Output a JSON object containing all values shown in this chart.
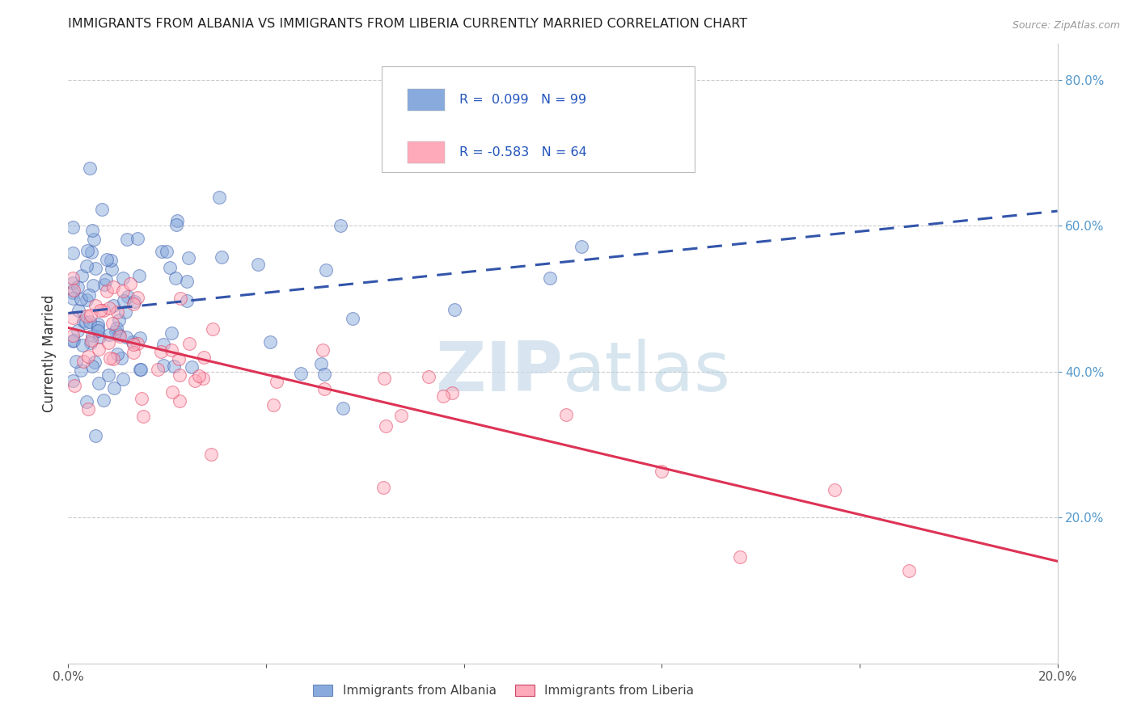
{
  "title": "IMMIGRANTS FROM ALBANIA VS IMMIGRANTS FROM LIBERIA CURRENTLY MARRIED CORRELATION CHART",
  "source": "Source: ZipAtlas.com",
  "ylabel": "Currently Married",
  "series1_label": "Immigrants from Albania",
  "series2_label": "Immigrants from Liberia",
  "series1_R": "0.099",
  "series1_N": "99",
  "series2_R": "-0.583",
  "series2_N": "64",
  "xlim": [
    0.0,
    0.2
  ],
  "ylim": [
    0.0,
    0.85
  ],
  "color_albania": "#88aadd",
  "color_liberia": "#ffaabb",
  "trendline_albania_color": "#3355aa",
  "trendline_liberia_color": "#dd3355",
  "background_color": "#ffffff",
  "watermark_text": "ZIPatlas",
  "watermark_color": "#ccdded",
  "grid_color": "#cccccc",
  "trendline_alb_y0": 0.48,
  "trendline_alb_y1": 0.62,
  "trendline_lib_y0": 0.46,
  "trendline_lib_y1": 0.14
}
